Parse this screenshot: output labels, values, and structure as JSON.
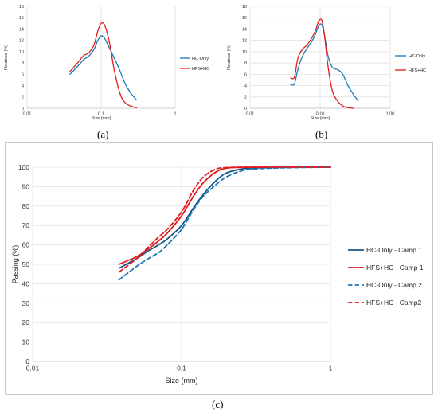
{
  "panels": {
    "a": "(a)",
    "b": "(b)",
    "c": "(c)"
  },
  "chart_data": [
    {
      "id": "a",
      "type": "line",
      "xscale": "log",
      "xlabel": "Size (mm)",
      "ylabel": "Retained (%)",
      "xlim": [
        0.01,
        1
      ],
      "ylim": [
        0,
        18
      ],
      "xticks": [
        "0.01",
        "0.1",
        "1"
      ],
      "xtick_values": [
        0.01,
        0.1,
        1
      ],
      "yticks": [
        0,
        2,
        4,
        6,
        8,
        10,
        12,
        14,
        16,
        18
      ],
      "grid": "vertical",
      "legend": "right",
      "series": [
        {
          "name": "HC-Only",
          "color": "#1f77b4",
          "x": [
            0.038,
            0.048,
            0.058,
            0.068,
            0.08,
            0.09,
            0.1,
            0.112,
            0.13,
            0.15,
            0.18,
            0.21,
            0.25,
            0.3
          ],
          "y": [
            6.0,
            7.4,
            8.6,
            9.2,
            10.4,
            12.0,
            12.8,
            12.3,
            10.6,
            8.9,
            6.6,
            4.4,
            2.7,
            1.5
          ]
        },
        {
          "name": "HFS+HC",
          "color": "#e31a1c",
          "x": [
            0.038,
            0.048,
            0.058,
            0.068,
            0.08,
            0.09,
            0.1,
            0.112,
            0.13,
            0.15,
            0.18,
            0.21,
            0.25,
            0.3
          ],
          "y": [
            6.5,
            8.0,
            9.3,
            9.8,
            11.2,
            13.6,
            15.0,
            14.6,
            11.5,
            6.8,
            2.6,
            1.0,
            0.4,
            0.1
          ]
        }
      ]
    },
    {
      "id": "b",
      "type": "line",
      "xscale": "log",
      "xlabel": "Size (mm)",
      "ylabel": "Retained (%)",
      "xlim": [
        0.01,
        1
      ],
      "ylim": [
        0,
        18
      ],
      "xticks": [
        "0.01",
        "0.10",
        "1.00"
      ],
      "xtick_values": [
        0.01,
        0.1,
        1
      ],
      "yticks": [
        0,
        2,
        4,
        6,
        8,
        10,
        12,
        14,
        16,
        18
      ],
      "grid": "both",
      "legend": "right",
      "series": [
        {
          "name": "HC-Only",
          "color": "#1f77b4",
          "x": [
            0.038,
            0.043,
            0.048,
            0.055,
            0.065,
            0.075,
            0.085,
            0.095,
            0.105,
            0.115,
            0.13,
            0.15,
            0.18,
            0.21,
            0.25,
            0.3,
            0.35
          ],
          "y": [
            4.2,
            4.3,
            6.8,
            9.0,
            10.6,
            11.7,
            13.0,
            14.5,
            14.8,
            13.0,
            9.2,
            7.2,
            6.8,
            6.0,
            4.0,
            2.4,
            1.3
          ]
        },
        {
          "name": "HFS+HC",
          "color": "#e31a1c",
          "x": [
            0.038,
            0.043,
            0.048,
            0.055,
            0.065,
            0.075,
            0.085,
            0.095,
            0.105,
            0.115,
            0.13,
            0.15,
            0.18,
            0.21,
            0.25,
            0.3
          ],
          "y": [
            5.4,
            5.5,
            8.8,
            10.3,
            11.2,
            12.3,
            13.6,
            15.3,
            15.6,
            13.0,
            7.3,
            3.0,
            1.2,
            0.4,
            0.1,
            0.0
          ]
        }
      ]
    },
    {
      "id": "c",
      "type": "line",
      "xscale": "log",
      "xlabel": "Size (mm)",
      "ylabel": "Passing (%)",
      "xlim": [
        0.01,
        1
      ],
      "ylim": [
        0,
        100
      ],
      "xticks": [
        "0.01",
        "0.1",
        "1"
      ],
      "xtick_values": [
        0.01,
        0.1,
        1
      ],
      "yticks": [
        0,
        10,
        20,
        30,
        40,
        50,
        60,
        70,
        80,
        90,
        100
      ],
      "grid": "both",
      "legend": "right",
      "series": [
        {
          "name": "HC-Only - Camp 1",
          "color": "#1a5588",
          "dash": false,
          "x": [
            0.038,
            0.05,
            0.06,
            0.07,
            0.08,
            0.1,
            0.12,
            0.14,
            0.17,
            0.2,
            0.25,
            0.3,
            0.5,
            1.0
          ],
          "y": [
            48,
            53,
            57,
            60,
            63,
            70,
            79,
            86,
            93,
            97,
            99,
            99.6,
            99.9,
            100
          ]
        },
        {
          "name": "HFS+HC - Camp 1",
          "color": "#e31a1c",
          "dash": false,
          "x": [
            0.038,
            0.05,
            0.06,
            0.07,
            0.08,
            0.1,
            0.12,
            0.14,
            0.17,
            0.2,
            0.25,
            0.3,
            0.5,
            1.0
          ],
          "y": [
            50,
            54,
            58,
            62,
            66,
            75,
            85,
            92,
            97.5,
            99.5,
            99.9,
            100,
            100,
            100
          ]
        },
        {
          "name": "HC-Only - Camp 2",
          "color": "#1f77b4",
          "dash": true,
          "x": [
            0.038,
            0.05,
            0.06,
            0.07,
            0.08,
            0.1,
            0.12,
            0.14,
            0.17,
            0.2,
            0.25,
            0.3,
            0.5,
            1.0
          ],
          "y": [
            42,
            49,
            53,
            56,
            60,
            68,
            78,
            85,
            91,
            95,
            98,
            99,
            99.7,
            100
          ]
        },
        {
          "name": "HFS+HC - Camp2",
          "color": "#e31a1c",
          "dash": true,
          "x": [
            0.038,
            0.05,
            0.06,
            0.07,
            0.08,
            0.1,
            0.12,
            0.14,
            0.17,
            0.2,
            0.25,
            0.3,
            0.5,
            1.0
          ],
          "y": [
            46,
            53,
            59,
            64,
            68,
            77,
            88,
            95,
            99,
            99.8,
            100,
            100,
            100,
            100
          ]
        }
      ]
    }
  ]
}
